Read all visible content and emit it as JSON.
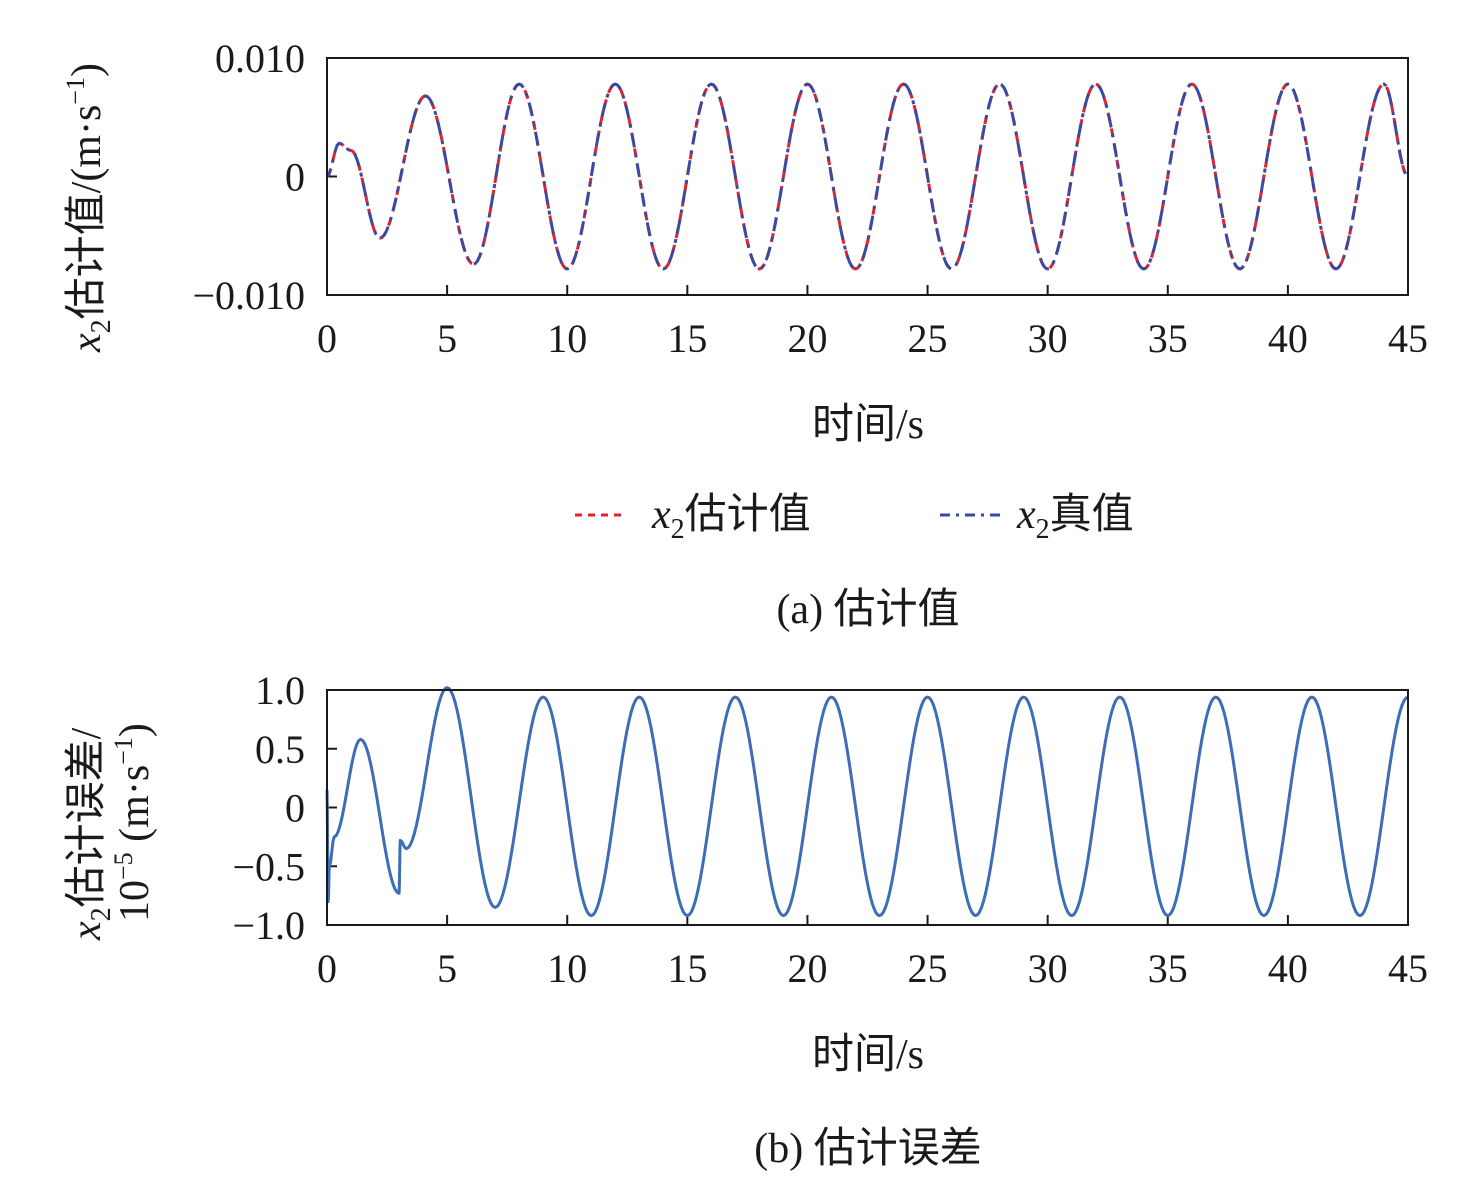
{
  "chart_data": [
    {
      "type": "line",
      "ylabel": {
        "var": "x",
        "sub": "2",
        "text": "估计值/(m·s",
        "sup": "−1",
        "close": ")"
      },
      "xlabel": "时间/s",
      "caption": "(a) 估计值",
      "xlim": [
        0,
        45
      ],
      "ylim": [
        -0.01,
        0.01
      ],
      "x_ticks": [
        "0",
        "5",
        "10",
        "15",
        "20",
        "25",
        "30",
        "35",
        "40",
        "45"
      ],
      "y_ticks": [
        "0.010",
        "0",
        "−0.010"
      ],
      "legend_position": "below",
      "series": [
        {
          "name": {
            "var": "x",
            "sub": "2",
            "text": "估计值"
          },
          "color": "#e8202a",
          "dash": "dashed",
          "x": [
            0,
            0.5,
            1.0,
            2.2,
            4.1,
            6.1,
            8.0,
            10.0,
            12.0,
            14.0,
            16.0,
            18.0,
            20.0,
            22.0,
            24.0,
            26.0,
            28.0,
            30.0,
            32.0,
            34.0,
            36.0,
            38.0,
            40.0,
            42.0,
            44.0,
            45.0
          ],
          "y": [
            0.0,
            0.0028,
            0.0022,
            -0.0052,
            0.0068,
            -0.0074,
            0.0078,
            -0.0078,
            0.0078,
            -0.0078,
            0.0078,
            -0.0078,
            0.0078,
            -0.0078,
            0.0078,
            -0.0078,
            0.0078,
            -0.0078,
            0.0078,
            -0.0078,
            0.0078,
            -0.0078,
            0.0078,
            -0.0078,
            0.0078,
            0.0
          ]
        },
        {
          "name": {
            "var": "x",
            "sub": "2",
            "text": "真值"
          },
          "color": "#3a4aa0",
          "dash": "dashed",
          "x": [
            0,
            0.5,
            1.0,
            2.2,
            4.1,
            6.1,
            8.0,
            10.0,
            12.0,
            14.0,
            16.0,
            18.0,
            20.0,
            22.0,
            24.0,
            26.0,
            28.0,
            30.0,
            32.0,
            34.0,
            36.0,
            38.0,
            40.0,
            42.0,
            44.0,
            45.0
          ],
          "y": [
            0.0,
            0.0028,
            0.0022,
            -0.0052,
            0.0068,
            -0.0074,
            0.0078,
            -0.0078,
            0.0078,
            -0.0078,
            0.0078,
            -0.0078,
            0.0078,
            -0.0078,
            0.0078,
            -0.0078,
            0.0078,
            -0.0078,
            0.0078,
            -0.0078,
            0.0078,
            -0.0078,
            0.0078,
            -0.0078,
            0.0078,
            0.0
          ]
        }
      ]
    },
    {
      "type": "line",
      "ylabel": {
        "var": "x",
        "sub": "2",
        "text": "估计误差/",
        "line2": "10",
        "sup2": "−5",
        "text2": " (m·s",
        "sup": "−1",
        "close": ")"
      },
      "xlabel": "时间/s",
      "caption": "(b) 估计误差",
      "xlim": [
        0,
        45
      ],
      "ylim": [
        -1.0,
        1.0
      ],
      "x_ticks": [
        "0",
        "5",
        "10",
        "15",
        "20",
        "25",
        "30",
        "35",
        "40",
        "45"
      ],
      "y_ticks": [
        "1.0",
        "0.5",
        "0",
        "−0.5",
        "−1.0"
      ],
      "series": [
        {
          "color": "#3d6db5",
          "x": [
            0,
            0.05,
            0.1,
            0.3,
            1.4,
            3.0,
            3.05,
            3.3,
            5.0,
            7.0,
            9.0,
            11.0,
            13.0,
            15.0,
            17.0,
            19.0,
            21.0,
            23.0,
            25.0,
            27.0,
            29.0,
            31.0,
            33.0,
            35.0,
            37.0,
            39.0,
            41.0,
            43.0,
            45.0
          ],
          "y": [
            0.15,
            -0.8,
            -0.5,
            -0.25,
            0.58,
            -0.73,
            -0.28,
            -0.35,
            1.02,
            -0.85,
            0.94,
            -0.92,
            0.94,
            -0.92,
            0.94,
            -0.92,
            0.94,
            -0.92,
            0.94,
            -0.92,
            0.94,
            -0.92,
            0.94,
            -0.92,
            0.94,
            -0.92,
            0.94,
            -0.92,
            0.94
          ]
        }
      ]
    }
  ]
}
